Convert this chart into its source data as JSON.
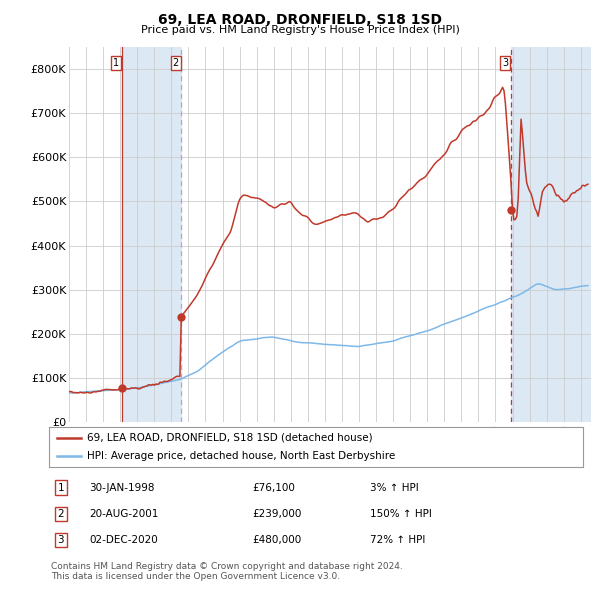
{
  "title": "69, LEA ROAD, DRONFIELD, S18 1SD",
  "subtitle": "Price paid vs. HM Land Registry's House Price Index (HPI)",
  "legend_label_red": "69, LEA ROAD, DRONFIELD, S18 1SD (detached house)",
  "legend_label_blue": "HPI: Average price, detached house, North East Derbyshire",
  "transactions": [
    {
      "num": 1,
      "date": "30-JAN-1998",
      "price": 76100,
      "pct": "3%",
      "dir": "↑"
    },
    {
      "num": 2,
      "date": "20-AUG-2001",
      "price": 239000,
      "pct": "150%",
      "dir": "↑"
    },
    {
      "num": 3,
      "date": "02-DEC-2020",
      "price": 480000,
      "pct": "72%",
      "dir": "↑"
    }
  ],
  "transaction_dates_decimal": [
    1998.083,
    2001.583,
    2020.917
  ],
  "transaction_prices": [
    76100,
    239000,
    480000
  ],
  "footer_line1": "Contains HM Land Registry data © Crown copyright and database right 2024.",
  "footer_line2": "This data is licensed under the Open Government Licence v3.0.",
  "ylim": [
    0,
    850000
  ],
  "yticks": [
    0,
    100000,
    200000,
    300000,
    400000,
    500000,
    600000,
    700000,
    800000
  ],
  "ytick_labels": [
    "£0",
    "£100K",
    "£200K",
    "£300K",
    "£400K",
    "£500K",
    "£600K",
    "£700K",
    "£800K"
  ],
  "red_color": "#c0392b",
  "blue_color": "#7db8e8",
  "shade_color": "#dce9f5",
  "grid_color": "#cccccc",
  "xstart": 1995.0,
  "xend": 2025.6,
  "xtick_years": [
    1995,
    1996,
    1997,
    1998,
    1999,
    2000,
    2001,
    2002,
    2003,
    2004,
    2005,
    2006,
    2007,
    2008,
    2009,
    2010,
    2011,
    2012,
    2013,
    2014,
    2015,
    2016,
    2017,
    2018,
    2019,
    2020,
    2021,
    2022,
    2023,
    2024,
    2025
  ]
}
